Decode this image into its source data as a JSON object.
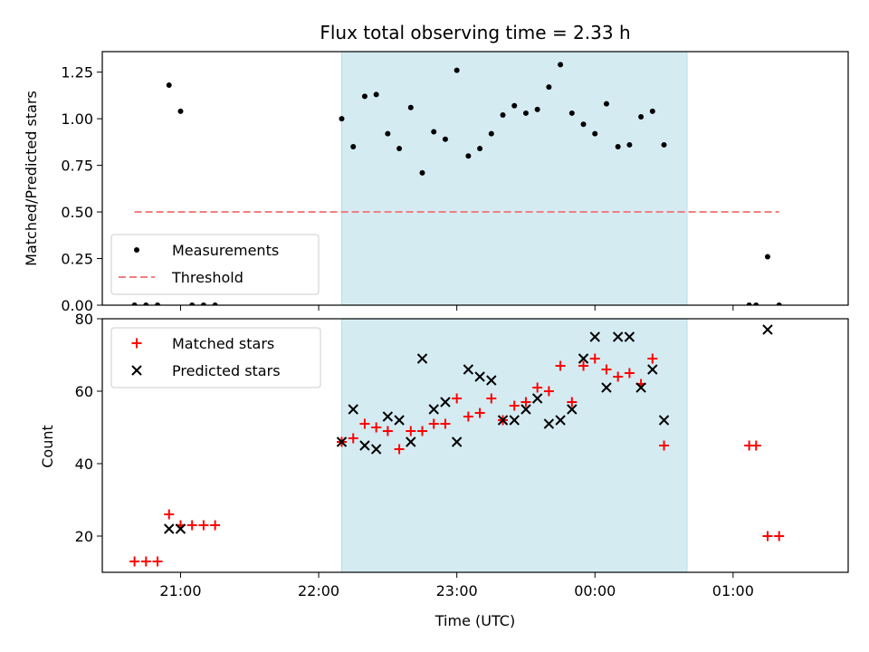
{
  "chart_data": [
    {
      "type": "scatter",
      "title": "Flux total observing time = 2.33 h",
      "xlabel": "",
      "ylabel": "Matched/Predicted stars",
      "xlim": [
        "20:26",
        "01:50"
      ],
      "ylim": [
        0,
        1.36
      ],
      "yticks": [
        "0.00",
        "0.25",
        "0.50",
        "0.75",
        "1.00",
        "1.25"
      ],
      "ytick_values": [
        0,
        0.25,
        0.5,
        0.75,
        1.0,
        1.25
      ],
      "highlight_span": [
        "22:10",
        "00:40"
      ],
      "highlight_color": "#d4ebf2",
      "legend_position": "lower-left",
      "series": [
        {
          "name": "Measurements",
          "marker": "dot",
          "color": "#000000",
          "points": [
            [
              "20:40",
              0.0
            ],
            [
              "20:45",
              0.0
            ],
            [
              "20:50",
              0.0
            ],
            [
              "20:55",
              1.18
            ],
            [
              "21:00",
              1.04
            ],
            [
              "21:05",
              0.0
            ],
            [
              "21:10",
              0.0
            ],
            [
              "21:15",
              0.0
            ],
            [
              "22:10",
              1.0
            ],
            [
              "22:15",
              0.85
            ],
            [
              "22:20",
              1.12
            ],
            [
              "22:25",
              1.13
            ],
            [
              "22:30",
              0.92
            ],
            [
              "22:35",
              0.84
            ],
            [
              "22:40",
              1.06
            ],
            [
              "22:45",
              0.71
            ],
            [
              "22:50",
              0.93
            ],
            [
              "22:55",
              0.89
            ],
            [
              "23:00",
              1.26
            ],
            [
              "23:05",
              0.8
            ],
            [
              "23:10",
              0.84
            ],
            [
              "23:15",
              0.92
            ],
            [
              "23:20",
              1.02
            ],
            [
              "23:25",
              1.07
            ],
            [
              "23:30",
              1.03
            ],
            [
              "23:35",
              1.05
            ],
            [
              "23:40",
              1.17
            ],
            [
              "23:45",
              1.29
            ],
            [
              "23:50",
              1.03
            ],
            [
              "23:55",
              0.97
            ],
            [
              "00:00",
              0.92
            ],
            [
              "00:05",
              1.08
            ],
            [
              "00:10",
              0.85
            ],
            [
              "00:15",
              0.86
            ],
            [
              "00:20",
              1.01
            ],
            [
              "00:25",
              1.04
            ],
            [
              "00:30",
              0.86
            ],
            [
              "01:07",
              0.0
            ],
            [
              "01:10",
              0.0
            ],
            [
              "01:15",
              0.26
            ],
            [
              "01:20",
              0.0
            ]
          ]
        },
        {
          "name": "Threshold",
          "marker": "dashed-line",
          "color": "#f08080",
          "points": [
            [
              "20:40",
              0.5
            ],
            [
              "01:20",
              0.5
            ]
          ]
        }
      ]
    },
    {
      "type": "scatter",
      "title": "",
      "xlabel": "Time (UTC)",
      "ylabel": "Count",
      "xlim": [
        "20:26",
        "01:50"
      ],
      "ylim": [
        10,
        80
      ],
      "yticks": [
        "20",
        "40",
        "60",
        "80"
      ],
      "ytick_values": [
        20,
        40,
        60,
        80
      ],
      "xticks": [
        "21:00",
        "22:00",
        "23:00",
        "00:00",
        "01:00"
      ],
      "highlight_span": [
        "22:10",
        "00:40"
      ],
      "highlight_color": "#d4ebf2",
      "legend_position": "top-left",
      "series": [
        {
          "name": "Matched stars",
          "marker": "plus",
          "color": "#ff0000",
          "points": [
            [
              "20:40",
              13
            ],
            [
              "20:45",
              13
            ],
            [
              "20:50",
              13
            ],
            [
              "20:55",
              26
            ],
            [
              "21:00",
              23
            ],
            [
              "21:05",
              23
            ],
            [
              "21:10",
              23
            ],
            [
              "21:15",
              23
            ],
            [
              "22:10",
              46
            ],
            [
              "22:15",
              47
            ],
            [
              "22:20",
              51
            ],
            [
              "22:25",
              50
            ],
            [
              "22:30",
              49
            ],
            [
              "22:35",
              44
            ],
            [
              "22:40",
              49
            ],
            [
              "22:45",
              49
            ],
            [
              "22:50",
              51
            ],
            [
              "22:55",
              51
            ],
            [
              "23:00",
              58
            ],
            [
              "23:05",
              53
            ],
            [
              "23:10",
              54
            ],
            [
              "23:15",
              58
            ],
            [
              "23:20",
              52
            ],
            [
              "23:25",
              56
            ],
            [
              "23:30",
              57
            ],
            [
              "23:35",
              61
            ],
            [
              "23:40",
              60
            ],
            [
              "23:45",
              67
            ],
            [
              "23:50",
              57
            ],
            [
              "23:55",
              67
            ],
            [
              "00:00",
              69
            ],
            [
              "00:05",
              66
            ],
            [
              "00:10",
              64
            ],
            [
              "00:15",
              65
            ],
            [
              "00:20",
              62
            ],
            [
              "00:25",
              69
            ],
            [
              "00:30",
              45
            ],
            [
              "01:07",
              45
            ],
            [
              "01:10",
              45
            ],
            [
              "01:15",
              20
            ],
            [
              "01:20",
              20
            ]
          ]
        },
        {
          "name": "Predicted stars",
          "marker": "x",
          "color": "#000000",
          "points": [
            [
              "20:55",
              22
            ],
            [
              "21:00",
              22
            ],
            [
              "22:10",
              46
            ],
            [
              "22:15",
              55
            ],
            [
              "22:20",
              45
            ],
            [
              "22:25",
              44
            ],
            [
              "22:30",
              53
            ],
            [
              "22:35",
              52
            ],
            [
              "22:40",
              46
            ],
            [
              "22:45",
              69
            ],
            [
              "22:50",
              55
            ],
            [
              "22:55",
              57
            ],
            [
              "23:00",
              46
            ],
            [
              "23:05",
              66
            ],
            [
              "23:10",
              64
            ],
            [
              "23:15",
              63
            ],
            [
              "23:20",
              52
            ],
            [
              "23:25",
              52
            ],
            [
              "23:30",
              55
            ],
            [
              "23:35",
              58
            ],
            [
              "23:40",
              51
            ],
            [
              "23:45",
              52
            ],
            [
              "23:50",
              55
            ],
            [
              "23:55",
              69
            ],
            [
              "00:00",
              75
            ],
            [
              "00:05",
              61
            ],
            [
              "00:10",
              75
            ],
            [
              "00:15",
              75
            ],
            [
              "00:20",
              61
            ],
            [
              "00:25",
              66
            ],
            [
              "00:30",
              52
            ],
            [
              "01:15",
              77
            ]
          ]
        }
      ]
    }
  ]
}
